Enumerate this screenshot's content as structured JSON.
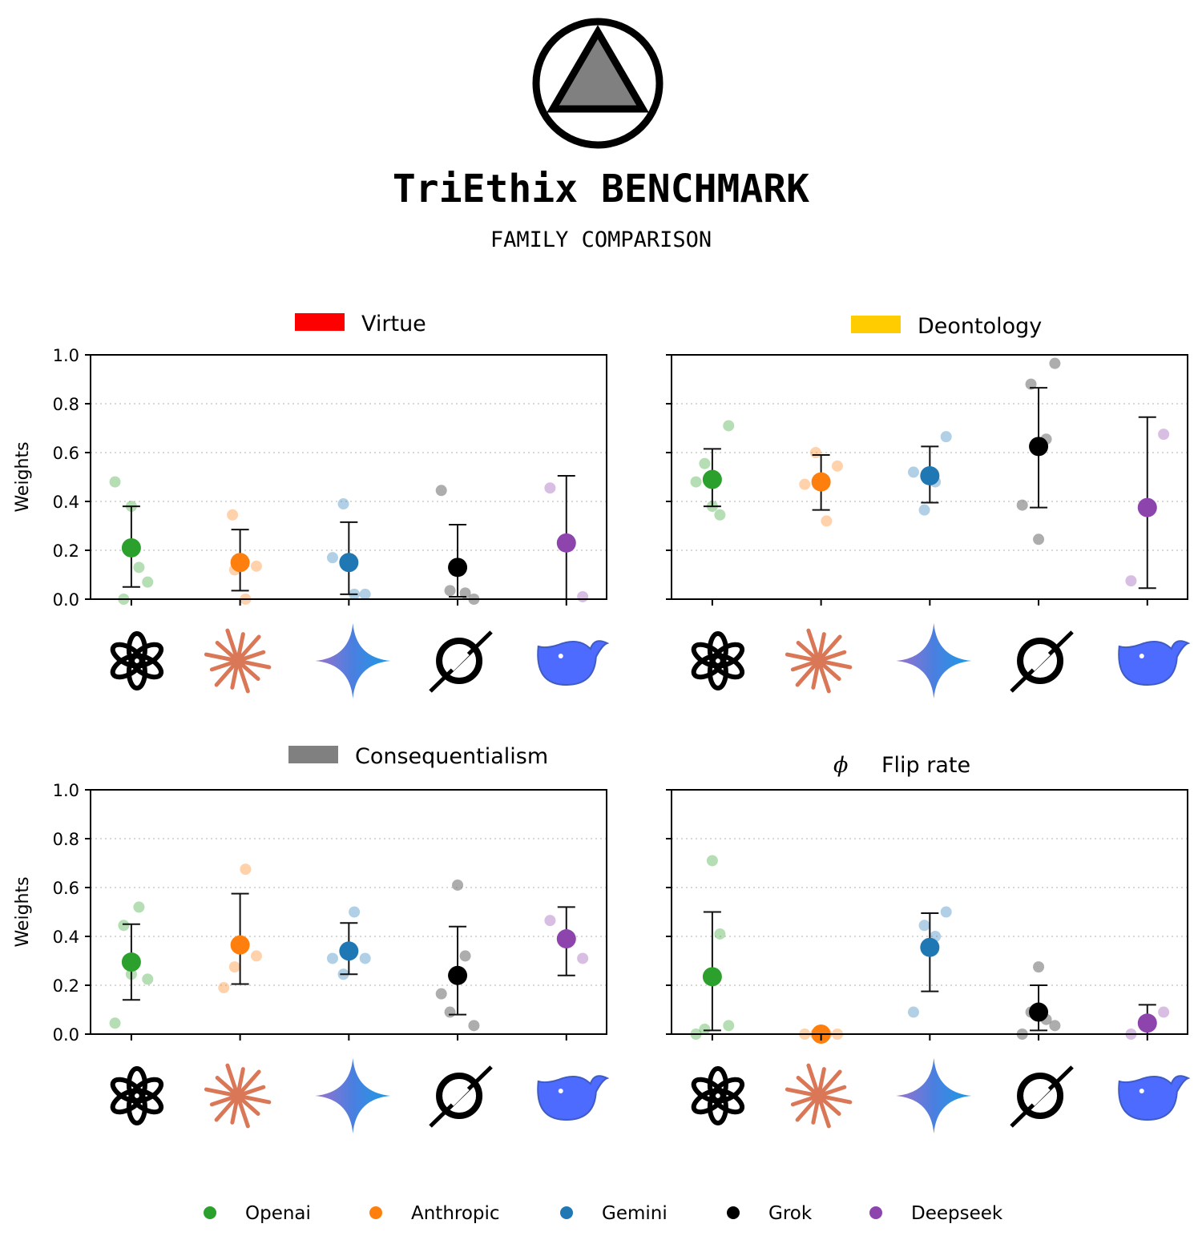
{
  "header": {
    "title": "TriEthix BENCHMARK",
    "subtitle": "FAMILY COMPARISON",
    "logo_icon": "triangle-in-circle-logo"
  },
  "chart_data": [
    {
      "type": "scatter",
      "title": "Virtue",
      "swatch_color": "#ff0000",
      "ylabel": "Weights",
      "ylim": [
        0,
        1
      ],
      "yticks": [
        "0.0",
        "0.2",
        "0.4",
        "0.6",
        "0.8",
        "1.0"
      ],
      "grid": "dotted horizontal",
      "categories": [
        "Openai",
        "Anthropic",
        "Gemini",
        "Grok",
        "Deepseek"
      ],
      "series": [
        {
          "name": "Openai",
          "mean": 0.21,
          "err": [
            0.05,
            0.38
          ],
          "points": [
            [
              -0.15,
              0.48
            ],
            [
              0,
              0.38
            ],
            [
              0.07,
              0.13
            ],
            [
              0.15,
              0.07
            ],
            [
              -0.07,
              0.0
            ]
          ]
        },
        {
          "name": "Anthropic",
          "mean": 0.15,
          "err": [
            0.035,
            0.285
          ],
          "points": [
            [
              -0.07,
              0.345
            ],
            [
              -0.05,
              0.12
            ],
            [
              0.15,
              0.135
            ],
            [
              0.05,
              0.0
            ]
          ]
        },
        {
          "name": "Gemini",
          "mean": 0.15,
          "err": [
            0.02,
            0.315
          ],
          "points": [
            [
              -0.05,
              0.39
            ],
            [
              -0.15,
              0.17
            ],
            [
              0.05,
              0.02
            ],
            [
              0.15,
              0.02
            ]
          ]
        },
        {
          "name": "Grok",
          "mean": 0.13,
          "err": [
            0.01,
            0.305
          ],
          "points": [
            [
              -0.15,
              0.445
            ],
            [
              -0.07,
              0.035
            ],
            [
              0.07,
              0.025
            ],
            [
              0.15,
              0.0
            ]
          ]
        },
        {
          "name": "Deepseek",
          "mean": 0.23,
          "err": [
            0.0,
            0.505
          ],
          "points": [
            [
              -0.15,
              0.455
            ],
            [
              0.15,
              0.01
            ]
          ]
        }
      ]
    },
    {
      "type": "scatter",
      "title": "Deontology",
      "swatch_color": "#ffcc00",
      "ylabel": "",
      "ylim": [
        0,
        1
      ],
      "yticks": [],
      "grid": "dotted horizontal",
      "categories": [
        "Openai",
        "Anthropic",
        "Gemini",
        "Grok",
        "Deepseek"
      ],
      "series": [
        {
          "name": "Openai",
          "mean": 0.49,
          "err": [
            0.38,
            0.615
          ],
          "points": [
            [
              0.15,
              0.71
            ],
            [
              -0.07,
              0.555
            ],
            [
              -0.15,
              0.48
            ],
            [
              0,
              0.38
            ],
            [
              0.07,
              0.345
            ]
          ]
        },
        {
          "name": "Anthropic",
          "mean": 0.48,
          "err": [
            0.365,
            0.59
          ],
          "points": [
            [
              -0.05,
              0.6
            ],
            [
              0.15,
              0.545
            ],
            [
              -0.15,
              0.47
            ],
            [
              0.05,
              0.32
            ]
          ]
        },
        {
          "name": "Gemini",
          "mean": 0.505,
          "err": [
            0.395,
            0.625
          ],
          "points": [
            [
              0.15,
              0.665
            ],
            [
              -0.15,
              0.52
            ],
            [
              0.05,
              0.48
            ],
            [
              -0.05,
              0.365
            ]
          ]
        },
        {
          "name": "Grok",
          "mean": 0.625,
          "err": [
            0.375,
            0.865
          ],
          "points": [
            [
              0.15,
              0.965
            ],
            [
              -0.07,
              0.88
            ],
            [
              0.07,
              0.655
            ],
            [
              -0.15,
              0.385
            ],
            [
              0,
              0.245
            ]
          ]
        },
        {
          "name": "Deepseek",
          "mean": 0.375,
          "err": [
            0.045,
            0.745
          ],
          "points": [
            [
              0.15,
              0.675
            ],
            [
              -0.15,
              0.075
            ]
          ]
        }
      ]
    },
    {
      "type": "scatter",
      "title": "Consequentialism",
      "swatch_color": "#808080",
      "ylabel": "Weights",
      "ylim": [
        0,
        1
      ],
      "yticks": [
        "0.0",
        "0.2",
        "0.4",
        "0.6",
        "0.8",
        "1.0"
      ],
      "grid": "dotted horizontal",
      "categories": [
        "Openai",
        "Anthropic",
        "Gemini",
        "Grok",
        "Deepseek"
      ],
      "series": [
        {
          "name": "Openai",
          "mean": 0.295,
          "err": [
            0.14,
            0.45
          ],
          "points": [
            [
              0.07,
              0.52
            ],
            [
              -0.07,
              0.445
            ],
            [
              0,
              0.245
            ],
            [
              0.15,
              0.225
            ],
            [
              -0.15,
              0.045
            ]
          ]
        },
        {
          "name": "Anthropic",
          "mean": 0.365,
          "err": [
            0.205,
            0.575
          ],
          "points": [
            [
              0.05,
              0.675
            ],
            [
              0.15,
              0.32
            ],
            [
              -0.05,
              0.275
            ],
            [
              -0.15,
              0.19
            ]
          ]
        },
        {
          "name": "Gemini",
          "mean": 0.34,
          "err": [
            0.245,
            0.455
          ],
          "points": [
            [
              0.05,
              0.5
            ],
            [
              -0.15,
              0.31
            ],
            [
              0.15,
              0.31
            ],
            [
              -0.05,
              0.245
            ]
          ]
        },
        {
          "name": "Grok",
          "mean": 0.24,
          "err": [
            0.08,
            0.44
          ],
          "points": [
            [
              0,
              0.61
            ],
            [
              0.07,
              0.32
            ],
            [
              -0.15,
              0.165
            ],
            [
              -0.07,
              0.09
            ],
            [
              0.15,
              0.035
            ]
          ]
        },
        {
          "name": "Deepseek",
          "mean": 0.39,
          "err": [
            0.24,
            0.52
          ],
          "points": [
            [
              -0.15,
              0.465
            ],
            [
              0.15,
              0.31
            ]
          ]
        }
      ]
    },
    {
      "type": "scatter",
      "title": "Flip rate",
      "title_symbol": "ϕ",
      "ylabel": "",
      "ylim": [
        0,
        1
      ],
      "yticks": [],
      "grid": "dotted horizontal",
      "categories": [
        "Openai",
        "Anthropic",
        "Gemini",
        "Grok",
        "Deepseek"
      ],
      "series": [
        {
          "name": "Openai",
          "mean": 0.235,
          "err": [
            0.015,
            0.5
          ],
          "points": [
            [
              0,
              0.71
            ],
            [
              0.07,
              0.41
            ],
            [
              0.15,
              0.035
            ],
            [
              -0.07,
              0.02
            ],
            [
              -0.15,
              0.0
            ]
          ]
        },
        {
          "name": "Anthropic",
          "mean": 0.0,
          "err": [
            0.0,
            0.0
          ],
          "points": [
            [
              -0.15,
              0.0
            ],
            [
              -0.05,
              0.0
            ],
            [
              0.05,
              0.0
            ],
            [
              0.15,
              0.0
            ]
          ]
        },
        {
          "name": "Gemini",
          "mean": 0.355,
          "err": [
            0.175,
            0.495
          ],
          "points": [
            [
              0.15,
              0.5
            ],
            [
              -0.05,
              0.445
            ],
            [
              0.05,
              0.4
            ],
            [
              -0.15,
              0.09
            ]
          ]
        },
        {
          "name": "Grok",
          "mean": 0.09,
          "err": [
            0.015,
            0.2
          ],
          "points": [
            [
              0,
              0.275
            ],
            [
              -0.07,
              0.09
            ],
            [
              0.07,
              0.06
            ],
            [
              0.15,
              0.035
            ],
            [
              -0.15,
              0.0
            ]
          ]
        },
        {
          "name": "Deepseek",
          "mean": 0.045,
          "err": [
            0.0,
            0.12
          ],
          "points": [
            [
              0.15,
              0.09
            ],
            [
              -0.15,
              0.0
            ]
          ]
        }
      ]
    }
  ],
  "legend": [
    {
      "label": "Openai",
      "color": "#2ca02c"
    },
    {
      "label": "Anthropic",
      "color": "#ff7f0e"
    },
    {
      "label": "Gemini",
      "color": "#1f77b4"
    },
    {
      "label": "Grok",
      "color": "#000000"
    },
    {
      "label": "Deepseek",
      "color": "#8e44ad"
    }
  ],
  "family_icons": [
    "openai-logo-icon",
    "anthropic-logo-icon",
    "gemini-logo-icon",
    "grok-logo-icon",
    "deepseek-logo-icon"
  ]
}
